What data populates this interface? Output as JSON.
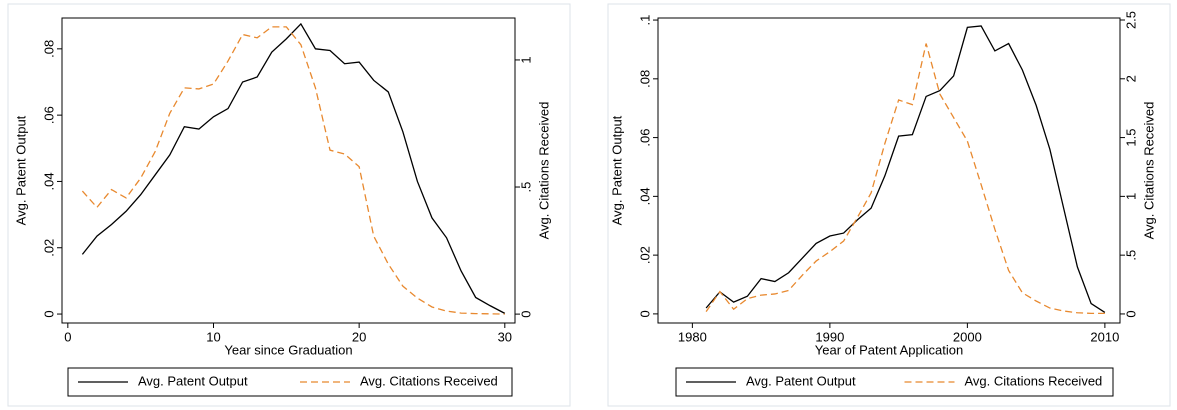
{
  "chart_data": [
    {
      "type": "line",
      "x": [
        1,
        2,
        3,
        4,
        5,
        6,
        7,
        8,
        9,
        10,
        11,
        12,
        13,
        14,
        15,
        16,
        17,
        18,
        19,
        20,
        21,
        22,
        23,
        24,
        25,
        26,
        27,
        28,
        29,
        30
      ],
      "xlabel": "Year since Graduation",
      "ylabel": "Avg. Patent Output",
      "y2label": "Avg. Citations Received",
      "xlim": [
        -0.4,
        30.7
      ],
      "xticks": [
        0,
        10,
        20,
        30
      ],
      "ylim": [
        -0.0027,
        0.0893
      ],
      "yticks": [
        0,
        {
          "value": 0.02,
          "label": ".02"
        },
        {
          "value": 0.04,
          "label": ".04"
        },
        {
          "value": 0.06,
          "label": ".06"
        },
        {
          "value": 0.08,
          "label": ".08"
        }
      ],
      "y2lim": [
        -0.035,
        1.165
      ],
      "y2ticks": [
        0,
        {
          "value": 0.5,
          "label": ".5"
        },
        1
      ],
      "series": [
        {
          "name": "Avg. Patent Output",
          "color": "#000000",
          "dash": "solid",
          "values": [
            0.018,
            0.0235,
            0.027,
            0.031,
            0.036,
            0.042,
            0.048,
            0.0565,
            0.0558,
            0.0595,
            0.062,
            0.07,
            0.0715,
            0.079,
            0.083,
            0.0875,
            0.08,
            0.0795,
            0.0755,
            0.076,
            0.0705,
            0.067,
            0.055,
            0.04,
            0.029,
            0.023,
            0.013,
            0.005,
            0.0025,
            0.0002
          ]
        },
        {
          "name": "Avg. Citations Received",
          "color": "#e8892f",
          "dash": "dashed",
          "axis": "y2",
          "values": [
            0.484,
            0.42,
            0.49,
            0.457,
            0.535,
            0.64,
            0.79,
            0.89,
            0.886,
            0.905,
            0.996,
            1.1,
            1.087,
            1.13,
            1.13,
            1.06,
            0.89,
            0.645,
            0.63,
            0.58,
            0.307,
            0.197,
            0.11,
            0.063,
            0.028,
            0.012,
            0.004,
            0.002,
            0.001,
            0
          ]
        }
      ]
    },
    {
      "type": "line",
      "x": [
        1981,
        1982,
        1983,
        1984,
        1985,
        1986,
        1987,
        1988,
        1989,
        1990,
        1991,
        1992,
        1993,
        1994,
        1995,
        1996,
        1997,
        1998,
        1999,
        2000,
        2001,
        2002,
        2003,
        2004,
        2005,
        2006,
        2007,
        2008,
        2009,
        2010
      ],
      "xlabel": "Year of Patent Application",
      "ylabel": "Avg. Patent Output",
      "y2label": "Avg. Citations Received",
      "xlim": [
        1977.5,
        2011.1
      ],
      "xticks": [
        1980,
        1990,
        2000,
        2010
      ],
      "ylim": [
        -0.0031,
        0.1007
      ],
      "yticks": [
        0,
        {
          "value": 0.02,
          "label": ".02"
        },
        {
          "value": 0.04,
          "label": ".04"
        },
        {
          "value": 0.06,
          "label": ".06"
        },
        {
          "value": 0.08,
          "label": ".08"
        },
        {
          "value": 0.1,
          "label": ".1"
        }
      ],
      "y2lim": [
        -0.077,
        2.517
      ],
      "y2ticks": [
        0,
        {
          "value": 0.5,
          "label": ".5"
        },
        1,
        1.5,
        2,
        2.5
      ],
      "series": [
        {
          "name": "Avg. Patent Output",
          "color": "#000000",
          "dash": "solid",
          "values": [
            0.002,
            0.0075,
            0.004,
            0.006,
            0.012,
            0.011,
            0.014,
            0.019,
            0.024,
            0.0265,
            0.0275,
            0.032,
            0.036,
            0.047,
            0.0605,
            0.061,
            0.074,
            0.076,
            0.081,
            0.0975,
            0.098,
            0.0895,
            0.092,
            0.083,
            0.071,
            0.056,
            0.036,
            0.016,
            0.0035,
            0.0005
          ]
        },
        {
          "name": "Avg. Citations Received",
          "color": "#e8892f",
          "dash": "dashed",
          "axis": "y2",
          "values": [
            0.02,
            0.19,
            0.04,
            0.13,
            0.16,
            0.17,
            0.2,
            0.33,
            0.45,
            0.53,
            0.62,
            0.82,
            1.03,
            1.45,
            1.82,
            1.78,
            2.3,
            1.87,
            1.67,
            1.47,
            1.1,
            0.72,
            0.37,
            0.18,
            0.11,
            0.05,
            0.025,
            0.01,
            0.005,
            0.005
          ]
        }
      ]
    }
  ]
}
